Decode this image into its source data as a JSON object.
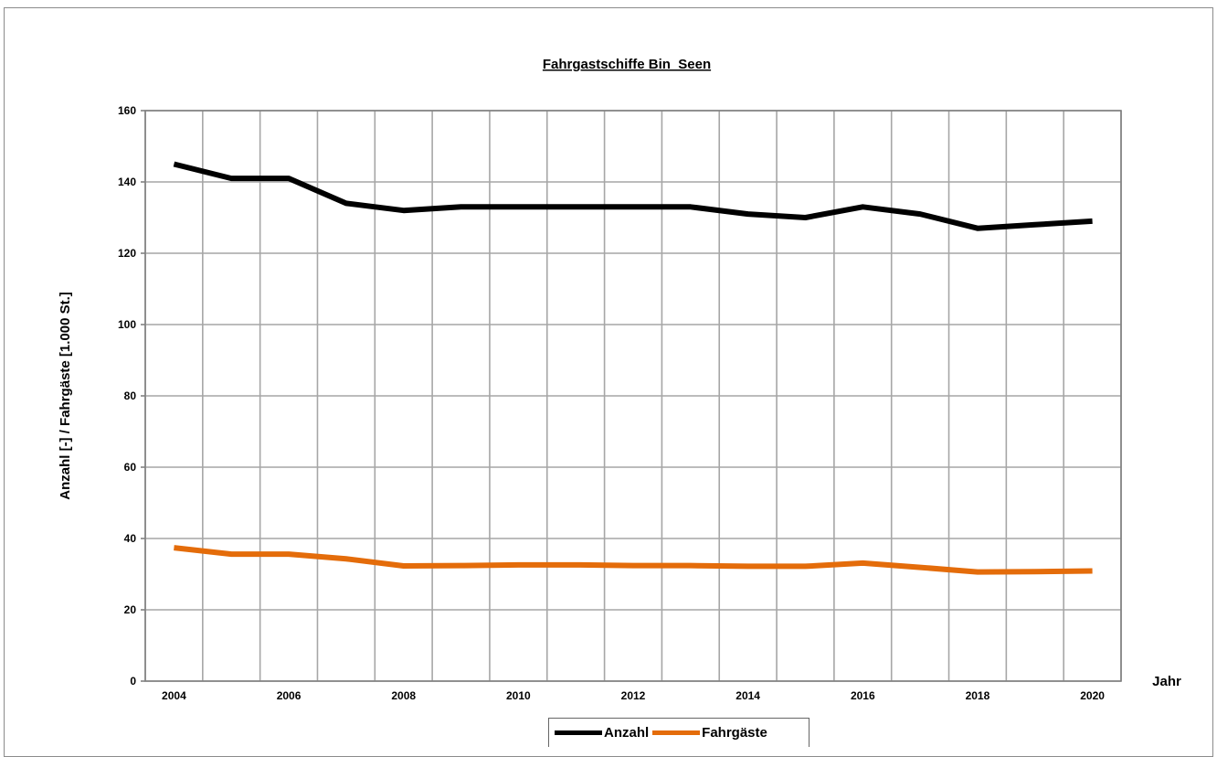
{
  "chart_data": {
    "type": "line",
    "title": "Fahrgastschiffe Bin_Seen",
    "xlabel": "Jahr",
    "ylabel": "Anzahl [-] / Fahrgäste [1.000 St.]",
    "x": [
      2004,
      2005,
      2006,
      2007,
      2008,
      2009,
      2010,
      2011,
      2012,
      2013,
      2014,
      2015,
      2016,
      2017,
      2018,
      2019,
      2020
    ],
    "x_tick_labels": [
      "2004",
      "2006",
      "2008",
      "2010",
      "2012",
      "2014",
      "2016",
      "2018",
      "2020"
    ],
    "xlim": [
      2003.5,
      2020.5
    ],
    "ylim": [
      0,
      160
    ],
    "y_ticks": [
      0,
      20,
      40,
      60,
      80,
      100,
      120,
      140,
      160
    ],
    "grid": true,
    "legend_position": "bottom",
    "series": [
      {
        "name": "Anzahl",
        "color": "#000000",
        "values": [
          145,
          141,
          141,
          134,
          132,
          133,
          133,
          133,
          133,
          133,
          131,
          130,
          133,
          131,
          127,
          128,
          129
        ]
      },
      {
        "name": "Fahrgäste",
        "color": "#e46c0a",
        "values": [
          37.4,
          35.6,
          35.6,
          34.3,
          32.3,
          32.4,
          32.6,
          32.6,
          32.4,
          32.4,
          32.2,
          32.2,
          33.1,
          31.9,
          30.6,
          30.7,
          30.9
        ]
      }
    ]
  }
}
